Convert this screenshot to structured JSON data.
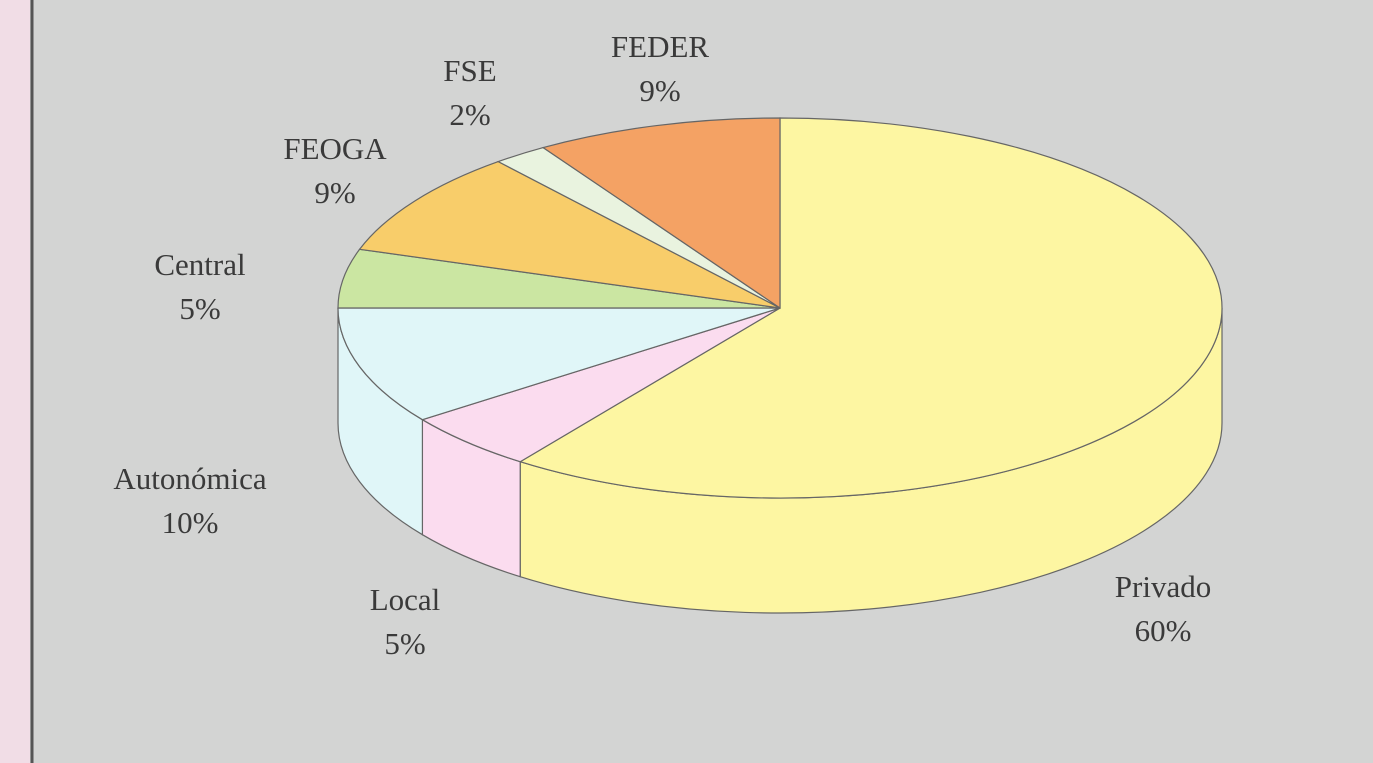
{
  "chart_data": {
    "type": "pie3d",
    "categories": [
      "Privado",
      "Local",
      "Autonómica",
      "Central",
      "FEOGA",
      "FSE",
      "FEDER"
    ],
    "values": [
      60,
      5,
      10,
      5,
      9,
      2,
      9
    ],
    "value_labels": [
      "60%",
      "5%",
      "10%",
      "5%",
      "9%",
      "2%",
      "9%"
    ],
    "colors": [
      "#fdf6a2",
      "#fbdcef",
      "#e0f6f8",
      "#cbe6a2",
      "#f8cd6a",
      "#e9f3df",
      "#f4a264"
    ]
  }
}
